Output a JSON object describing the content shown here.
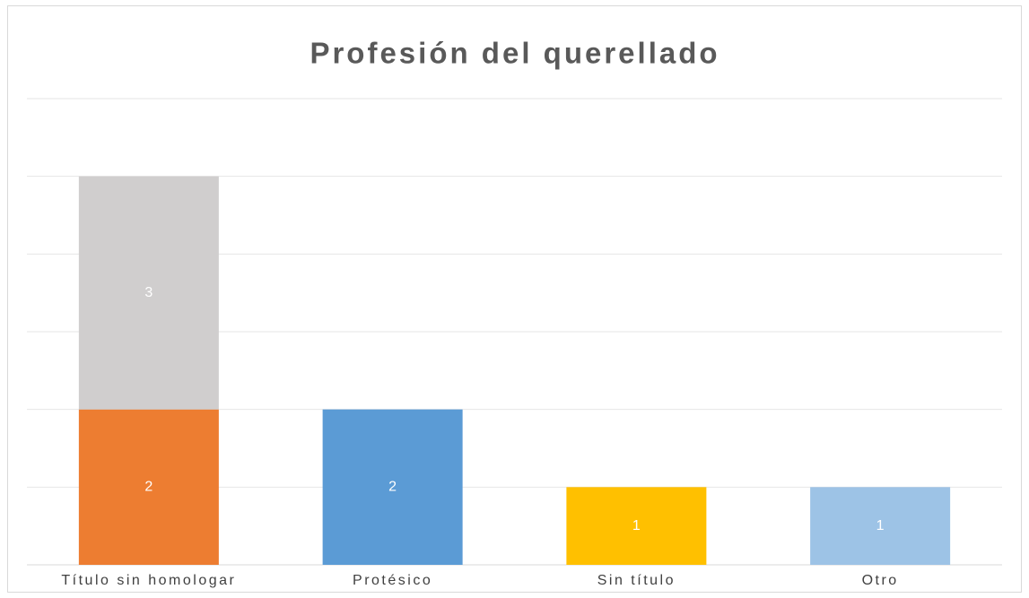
{
  "chart_data": {
    "type": "stacked_bar",
    "title": "Profesión del querellado",
    "categories": [
      "Título sin homologar",
      "Protésico",
      "Sin título",
      "Otro"
    ],
    "series": [
      {
        "color": "#ed7d31",
        "values": [
          2,
          null,
          null,
          null
        ]
      },
      {
        "color": "#d0cece",
        "values": [
          3,
          null,
          null,
          null
        ]
      },
      {
        "color": "#5b9bd5",
        "values": [
          null,
          2,
          null,
          null
        ]
      },
      {
        "color": "#ffc000",
        "values": [
          null,
          null,
          1,
          null
        ]
      },
      {
        "color": "#9dc3e6",
        "values": [
          null,
          null,
          null,
          1
        ]
      }
    ],
    "ylim": [
      0,
      6
    ],
    "yticks": [
      0,
      1,
      2,
      3,
      4,
      5,
      6
    ],
    "grid": true
  }
}
